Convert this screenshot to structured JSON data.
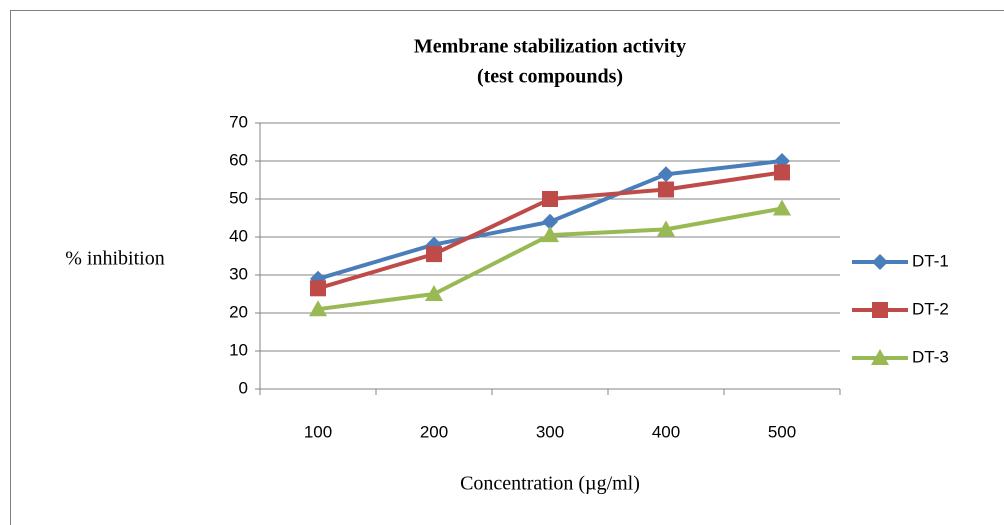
{
  "chart_data": {
    "type": "line",
    "title": "Membrane stabilization activity",
    "subtitle": "(test compounds)",
    "x_label": "Concentration (µg/ml)",
    "y_label": "% inhibition",
    "categories": [
      "100",
      "200",
      "300",
      "400",
      "500"
    ],
    "series": [
      {
        "name": "DT-1",
        "color": "#4a7ebb",
        "marker": "diamond",
        "values": [
          29,
          38,
          44,
          56.5,
          60
        ]
      },
      {
        "name": "DT-2",
        "color": "#be4b48",
        "marker": "square",
        "values": [
          26.5,
          35.5,
          50,
          52.5,
          57
        ]
      },
      {
        "name": "DT-3",
        "color": "#98b954",
        "marker": "triangle",
        "values": [
          21,
          25,
          40.5,
          42,
          47.5
        ]
      }
    ],
    "ylim": [
      0,
      70
    ],
    "yticks": [
      0,
      10,
      20,
      30,
      40,
      50,
      60,
      70
    ],
    "grid": true,
    "legend": "right"
  }
}
